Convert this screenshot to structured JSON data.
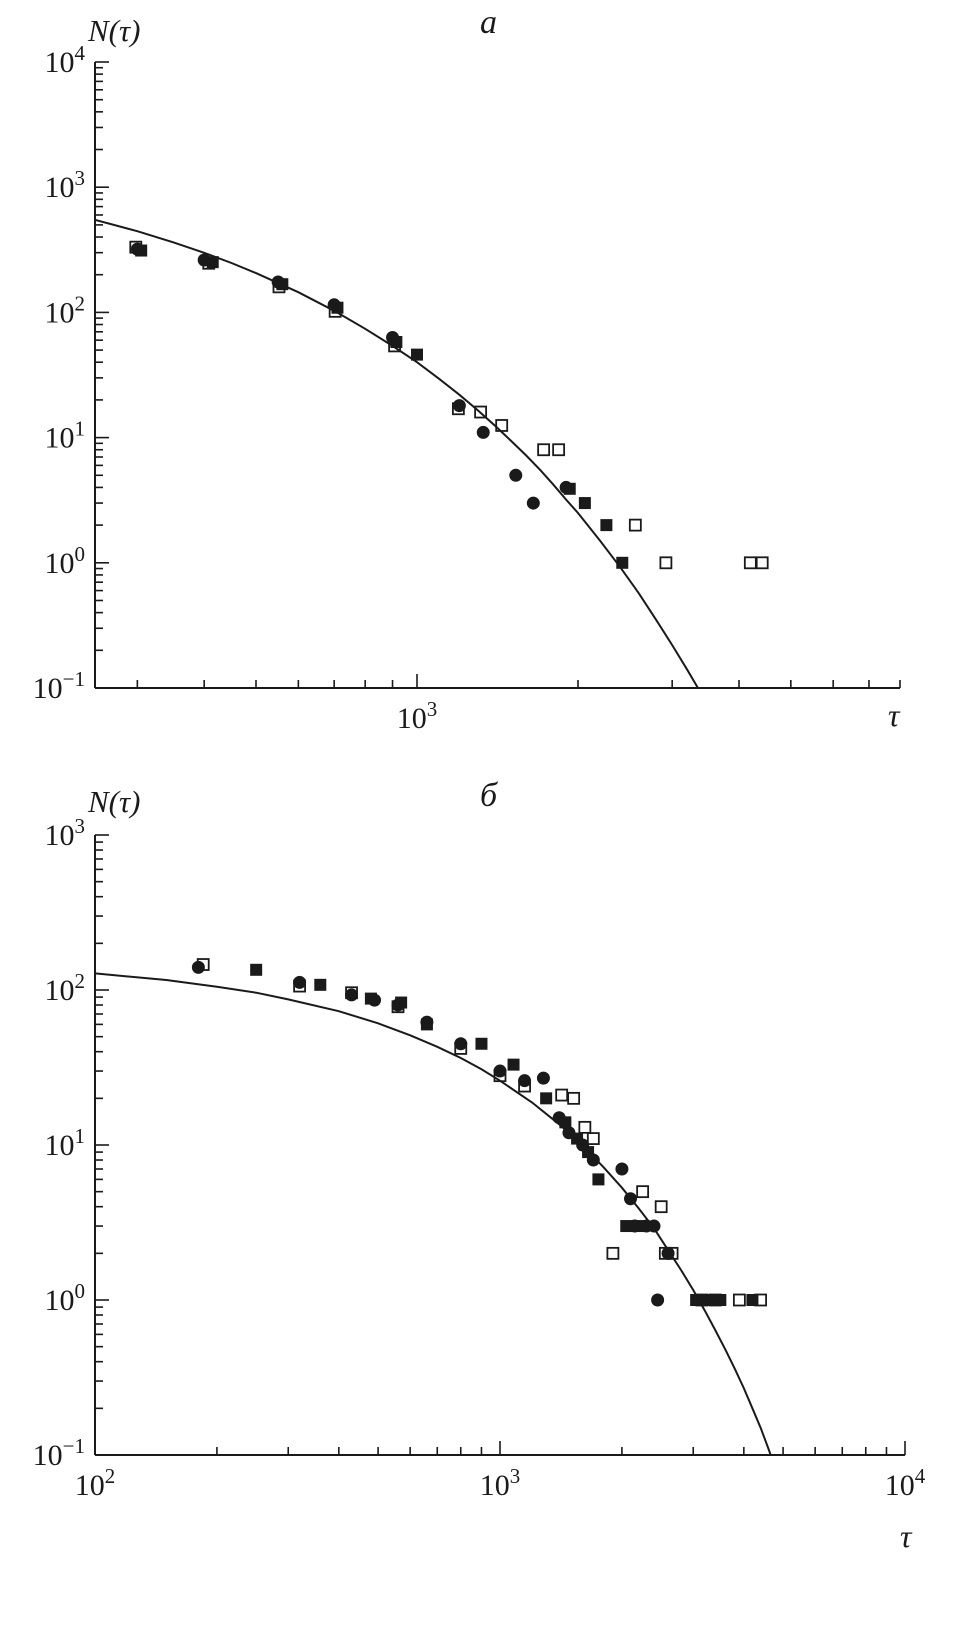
{
  "figure": {
    "background": "#ffffff",
    "ink_color": "#1a1a1a"
  },
  "chart_data": [
    {
      "id": "a",
      "type": "scatter",
      "title": "a",
      "ylabel": "N(τ)",
      "xlabel": "τ",
      "xscale": "log",
      "yscale": "log",
      "grid": false,
      "legend": "none",
      "xlim": [
        250,
        8000
      ],
      "ylim": [
        0.1,
        10000
      ],
      "x_ticks": [
        {
          "value": 1000,
          "base": "10",
          "exp": "3"
        }
      ],
      "y_ticks": [
        {
          "value": 10000,
          "base": "10",
          "exp": "4"
        },
        {
          "value": 1000,
          "base": "10",
          "exp": "3"
        },
        {
          "value": 100,
          "base": "10",
          "exp": "2"
        },
        {
          "value": 10,
          "base": "10",
          "exp": "1"
        },
        {
          "value": 1,
          "base": "10",
          "exp": "0"
        },
        {
          "value": 0.1,
          "base": "10",
          "exp": "−1"
        }
      ],
      "series": [
        {
          "name": "filled-circles",
          "marker": "circle-filled",
          "points": [
            [
              300,
              320
            ],
            [
              400,
              262
            ],
            [
              550,
              175
            ],
            [
              700,
              115
            ],
            [
              900,
              63
            ],
            [
              1200,
              18
            ],
            [
              1330,
              11
            ],
            [
              1530,
              5
            ],
            [
              1650,
              3
            ],
            [
              1900,
              4
            ]
          ]
        },
        {
          "name": "filled-squares",
          "marker": "square-filled",
          "points": [
            [
              305,
              312
            ],
            [
              415,
              252
            ],
            [
              560,
              168
            ],
            [
              710,
              109
            ],
            [
              915,
              58
            ],
            [
              1000,
              46
            ],
            [
              1930,
              3.9
            ],
            [
              2060,
              3
            ],
            [
              2260,
              2
            ],
            [
              2420,
              1
            ]
          ]
        },
        {
          "name": "open-squares",
          "marker": "square-open",
          "points": [
            [
              298,
              332
            ],
            [
              408,
              247
            ],
            [
              552,
              160
            ],
            [
              703,
              102
            ],
            [
              908,
              54
            ],
            [
              1195,
              17
            ],
            [
              1315,
              16
            ],
            [
              1440,
              12.5
            ],
            [
              1725,
              8
            ],
            [
              1840,
              8
            ],
            [
              2560,
              2
            ],
            [
              2920,
              1
            ],
            [
              4200,
              1
            ],
            [
              4420,
              1
            ]
          ]
        }
      ],
      "fit_curve": {
        "points": [
          [
            250,
            548
          ],
          [
            300,
            445
          ],
          [
            350,
            363
          ],
          [
            400,
            299
          ],
          [
            450,
            248
          ],
          [
            500,
            206
          ],
          [
            600,
            145
          ],
          [
            700,
            103
          ],
          [
            800,
            74
          ],
          [
            900,
            54
          ],
          [
            1000,
            40
          ],
          [
            1100,
            29.5
          ],
          [
            1200,
            22
          ],
          [
            1300,
            16.5
          ],
          [
            1400,
            12.4
          ],
          [
            1500,
            9.4
          ],
          [
            1600,
            7.2
          ],
          [
            1700,
            5.5
          ],
          [
            1800,
            4.2
          ],
          [
            1900,
            3.2
          ],
          [
            2000,
            2.5
          ],
          [
            2200,
            1.5
          ],
          [
            2400,
            0.92
          ],
          [
            2600,
            0.57
          ],
          [
            2800,
            0.35
          ],
          [
            3000,
            0.22
          ],
          [
            3200,
            0.14
          ],
          [
            3400,
            0.09
          ]
        ]
      }
    },
    {
      "id": "b",
      "type": "scatter",
      "title": "б",
      "ylabel": "N(τ)",
      "xlabel": "τ",
      "xscale": "log",
      "yscale": "log",
      "grid": false,
      "legend": "none",
      "xlim": [
        100,
        10000
      ],
      "ylim": [
        0.1,
        1000
      ],
      "x_ticks": [
        {
          "value": 100,
          "base": "10",
          "exp": "2"
        },
        {
          "value": 1000,
          "base": "10",
          "exp": "3"
        },
        {
          "value": 10000,
          "base": "10",
          "exp": "4"
        }
      ],
      "y_ticks": [
        {
          "value": 1000,
          "base": "10",
          "exp": "3"
        },
        {
          "value": 100,
          "base": "10",
          "exp": "2"
        },
        {
          "value": 10,
          "base": "10",
          "exp": "1"
        },
        {
          "value": 1,
          "base": "10",
          "exp": "0"
        },
        {
          "value": 0.1,
          "base": "10",
          "exp": "−1"
        }
      ],
      "series": [
        {
          "name": "filled-circles",
          "marker": "circle-filled",
          "points": [
            [
              180,
              140
            ],
            [
              320,
              112
            ],
            [
              430,
              93
            ],
            [
              490,
              86
            ],
            [
              560,
              80
            ],
            [
              660,
              62
            ],
            [
              800,
              45
            ],
            [
              1000,
              30
            ],
            [
              1150,
              26
            ],
            [
              1280,
              27
            ],
            [
              1400,
              15
            ],
            [
              1480,
              12
            ],
            [
              1600,
              10
            ],
            [
              1700,
              8
            ],
            [
              2000,
              7
            ],
            [
              2100,
              4.5
            ],
            [
              2150,
              3
            ],
            [
              2300,
              3
            ],
            [
              2400,
              3
            ],
            [
              2450,
              1
            ],
            [
              2600,
              2
            ]
          ]
        },
        {
          "name": "filled-squares",
          "marker": "square-filled",
          "points": [
            [
              250,
              135
            ],
            [
              360,
              108
            ],
            [
              480,
              88
            ],
            [
              570,
              83
            ],
            [
              660,
              60
            ],
            [
              900,
              45
            ],
            [
              1080,
              33
            ],
            [
              1300,
              20
            ],
            [
              1450,
              14
            ],
            [
              1550,
              11
            ],
            [
              1650,
              9
            ],
            [
              1750,
              6
            ],
            [
              2050,
              3
            ],
            [
              2250,
              3
            ],
            [
              3050,
              1
            ],
            [
              3200,
              1
            ],
            [
              3350,
              1
            ],
            [
              3500,
              1
            ],
            [
              4200,
              1
            ]
          ]
        },
        {
          "name": "open-squares",
          "marker": "square-open",
          "points": [
            [
              185,
              146
            ],
            [
              320,
              106
            ],
            [
              430,
              96
            ],
            [
              560,
              78
            ],
            [
              800,
              42
            ],
            [
              1000,
              28
            ],
            [
              1150,
              24
            ],
            [
              1420,
              21
            ],
            [
              1520,
              20
            ],
            [
              1620,
              13
            ],
            [
              1700,
              11
            ],
            [
              1900,
              2
            ],
            [
              2250,
              5
            ],
            [
              2500,
              4
            ],
            [
              2560,
              2
            ],
            [
              2660,
              2
            ],
            [
              3150,
              1
            ],
            [
              3400,
              1
            ],
            [
              3900,
              1
            ],
            [
              4400,
              1
            ]
          ]
        }
      ],
      "fit_curve": {
        "points": [
          [
            100,
            128
          ],
          [
            150,
            116
          ],
          [
            200,
            105
          ],
          [
            250,
            96
          ],
          [
            300,
            87
          ],
          [
            400,
            73
          ],
          [
            500,
            61
          ],
          [
            600,
            51
          ],
          [
            700,
            43
          ],
          [
            800,
            36.4
          ],
          [
            900,
            30.8
          ],
          [
            1000,
            26
          ],
          [
            1200,
            18.8
          ],
          [
            1400,
            13.6
          ],
          [
            1600,
            9.9
          ],
          [
            1800,
            7.2
          ],
          [
            2000,
            5.3
          ],
          [
            2200,
            3.9
          ],
          [
            2400,
            2.9
          ],
          [
            2600,
            2.1
          ],
          [
            2800,
            1.56
          ],
          [
            3000,
            1.16
          ],
          [
            3200,
            0.86
          ],
          [
            3400,
            0.64
          ],
          [
            3600,
            0.48
          ],
          [
            3800,
            0.36
          ],
          [
            4000,
            0.27
          ],
          [
            4200,
            0.2
          ],
          [
            4400,
            0.15
          ],
          [
            4600,
            0.11
          ],
          [
            4800,
            0.08
          ]
        ]
      }
    }
  ]
}
